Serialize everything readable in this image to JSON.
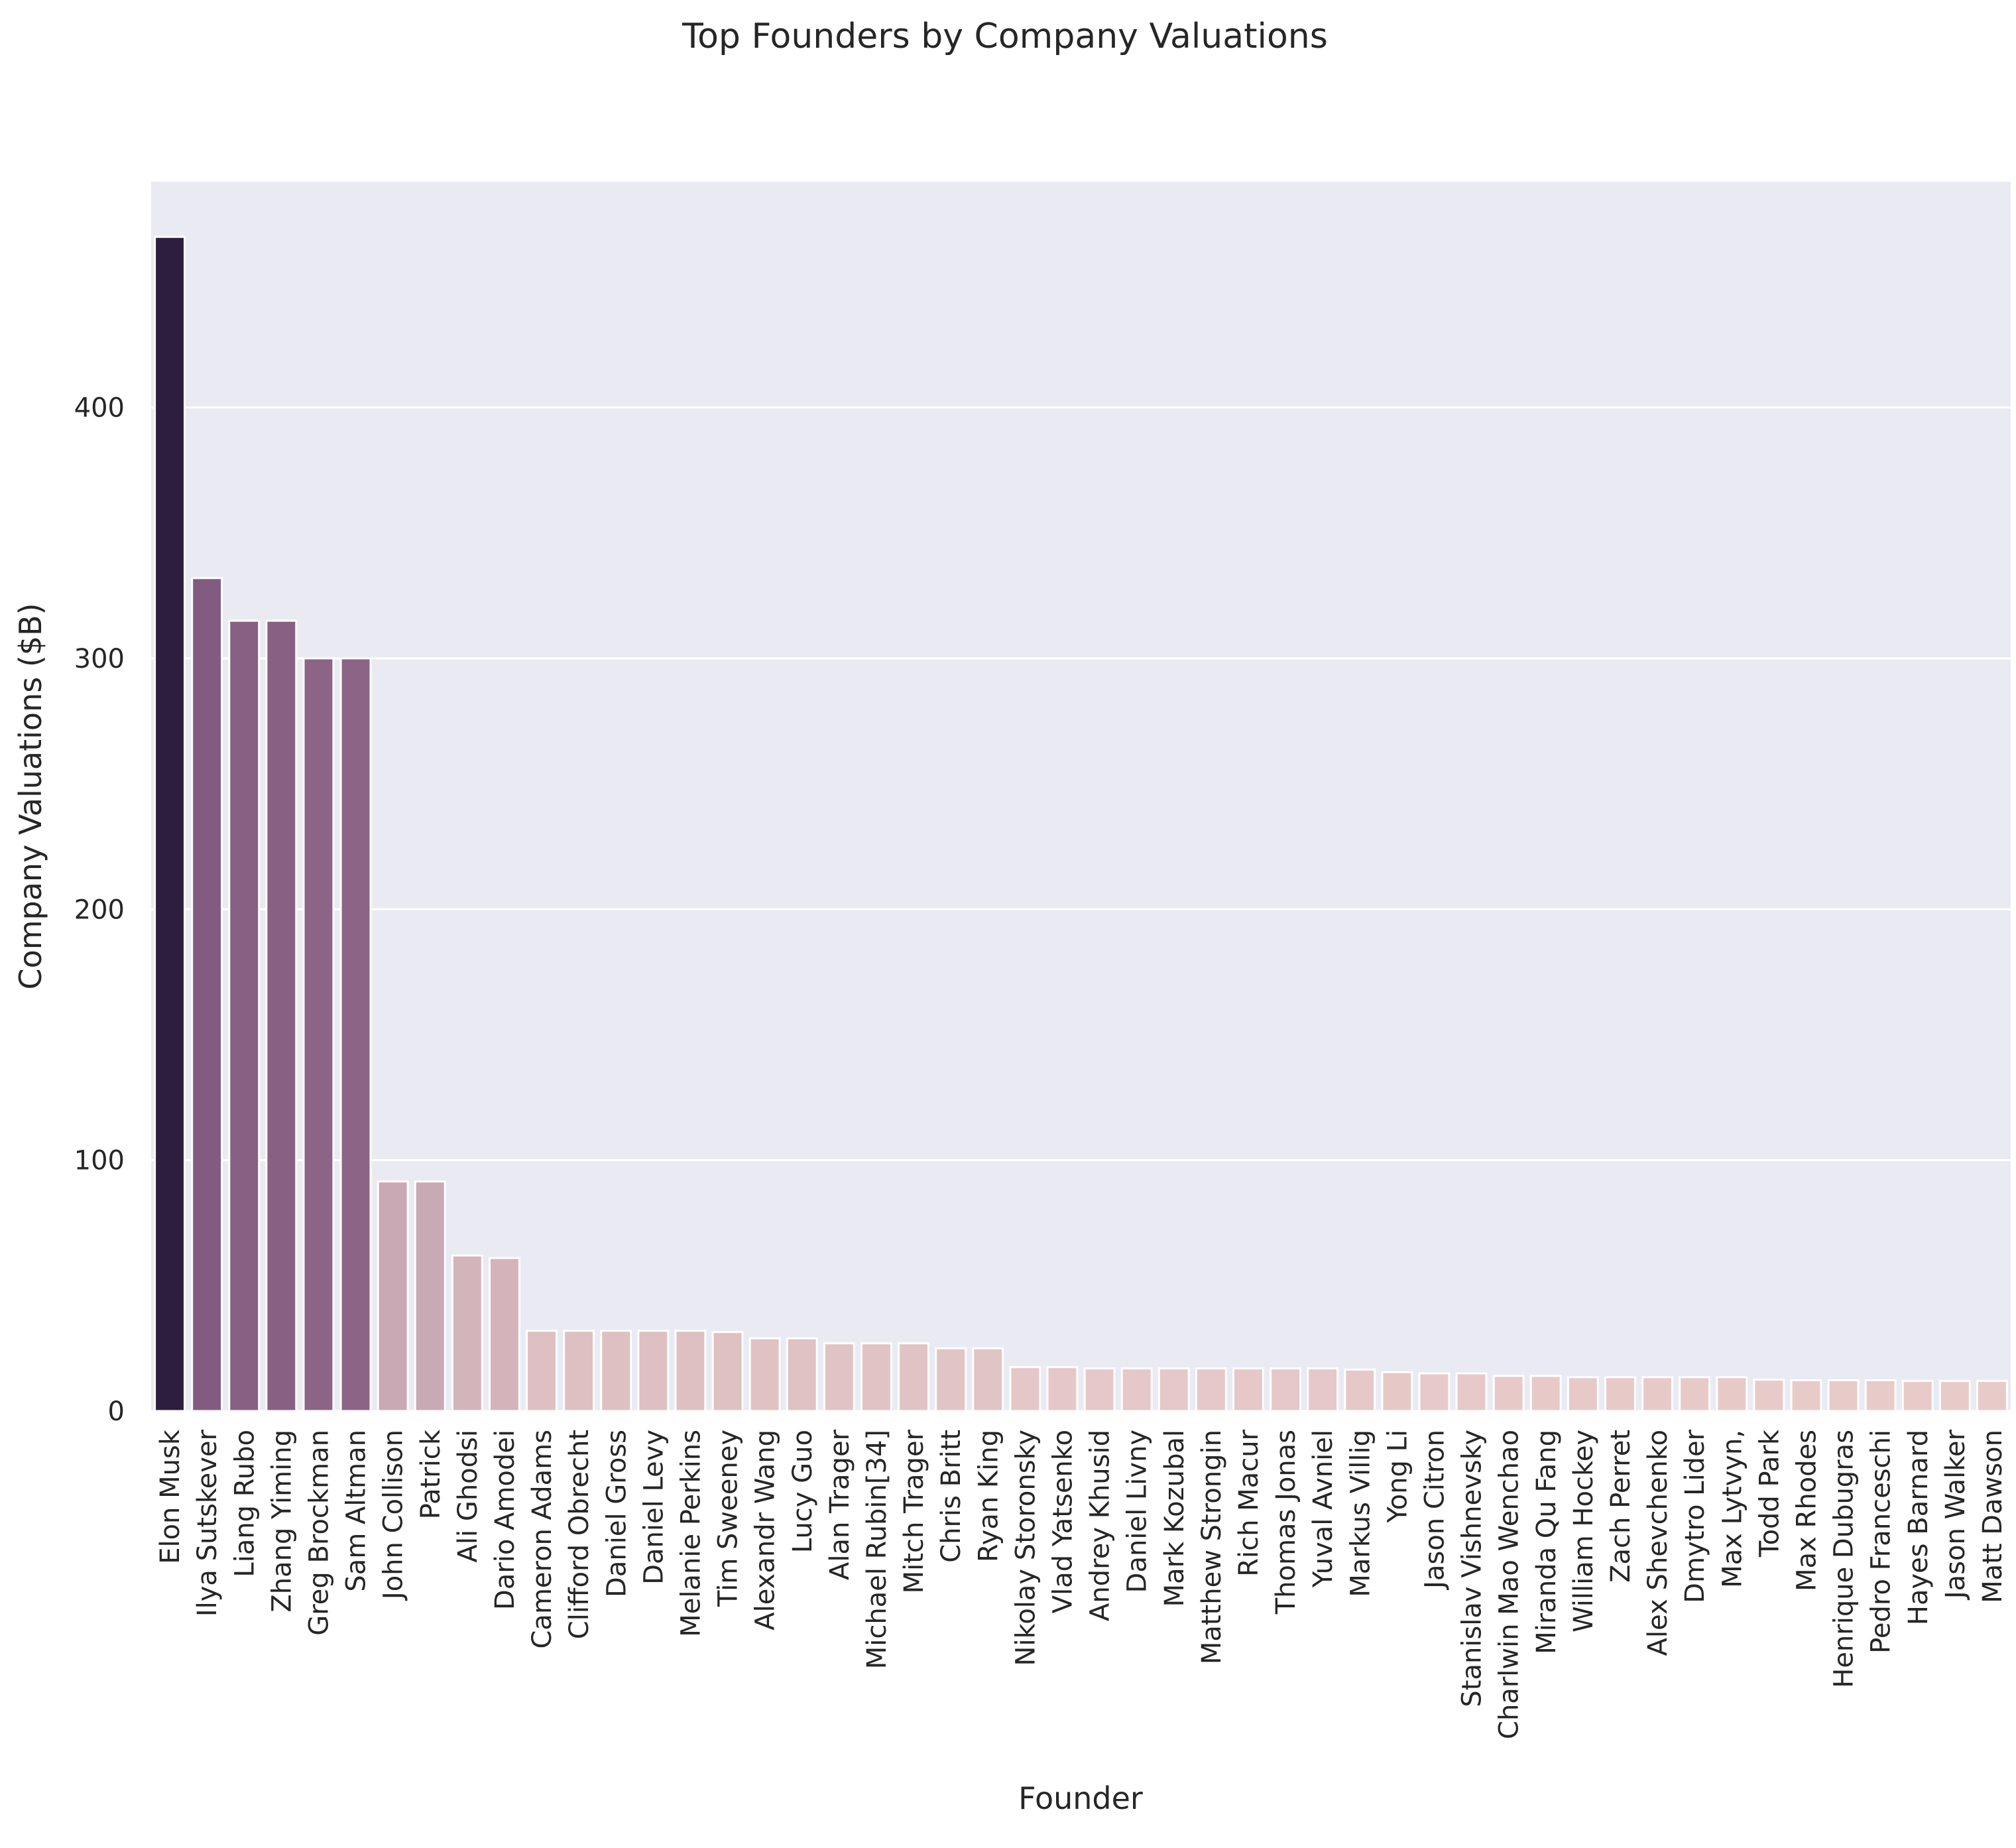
{
  "chart_data": {
    "type": "bar",
    "title": "Top Founders by Company Valuations",
    "xlabel": "Founder",
    "ylabel": "Company Valuations ($B)",
    "ylim": [
      0,
      490
    ],
    "yticks": [
      0,
      100,
      200,
      300,
      400
    ],
    "grid": true,
    "legend": "none",
    "colors": {
      "background": "#eaeaf2",
      "gridline": "#ffffff",
      "bar_dark": "#2d1e3e",
      "bar_mid": "#7a5079",
      "bar_light": "#e8cbc9"
    },
    "categories": [
      "Elon Musk",
      "Ilya Sutskever",
      "Liang Rubo",
      "Zhang Yiming",
      "Greg Brockman",
      "Sam Altman",
      "John Collison",
      "Patrick",
      "Ali Ghodsi",
      "Dario Amodei",
      "Cameron Adams",
      "Clifford Obrecht",
      "Daniel Gross",
      "Daniel Levy",
      "Melanie Perkins",
      "Tim Sweeney",
      "Alexandr Wang",
      "Lucy Guo",
      "Alan Trager",
      "Michael Rubin[34]",
      "Mitch Trager",
      "Chris Britt",
      "Ryan King",
      "Nikolay Storonsky",
      "Vlad Yatsenko",
      "Andrey Khusid",
      "Daniel Livny",
      "Mark Kozubal",
      "Matthew Strongin",
      "Rich Macur",
      "Thomas Jonas",
      "Yuval Avniel",
      "Markus Villig",
      "Yong Li",
      "Jason Citron",
      "Stanislav Vishnevsky",
      "Charlwin Mao Wenchao",
      "Miranda Qu Fang",
      "William Hockey",
      "Zach Perret",
      "Alex Shevchenko",
      "Dmytro Lider",
      "Max Lytvyn,",
      "Todd Park",
      "Max Rhodes",
      "Henrique Dubugras",
      "Pedro Franceschi",
      "Hayes Barnard",
      "Jason Walker",
      "Matt Dawson"
    ],
    "values": [
      468,
      332,
      315,
      315,
      300,
      300,
      91.5,
      91.5,
      62,
      61,
      32,
      32,
      32,
      32,
      32,
      31.5,
      29,
      29,
      27,
      27,
      27,
      25,
      25,
      17.5,
      17.5,
      17,
      17,
      17,
      17,
      17,
      17,
      17,
      16.5,
      15.5,
      15,
      15,
      14,
      14,
      13.5,
      13.5,
      13.5,
      13.5,
      13.5,
      12.5,
      12.3,
      12.3,
      12.3,
      12,
      12,
      12
    ]
  }
}
